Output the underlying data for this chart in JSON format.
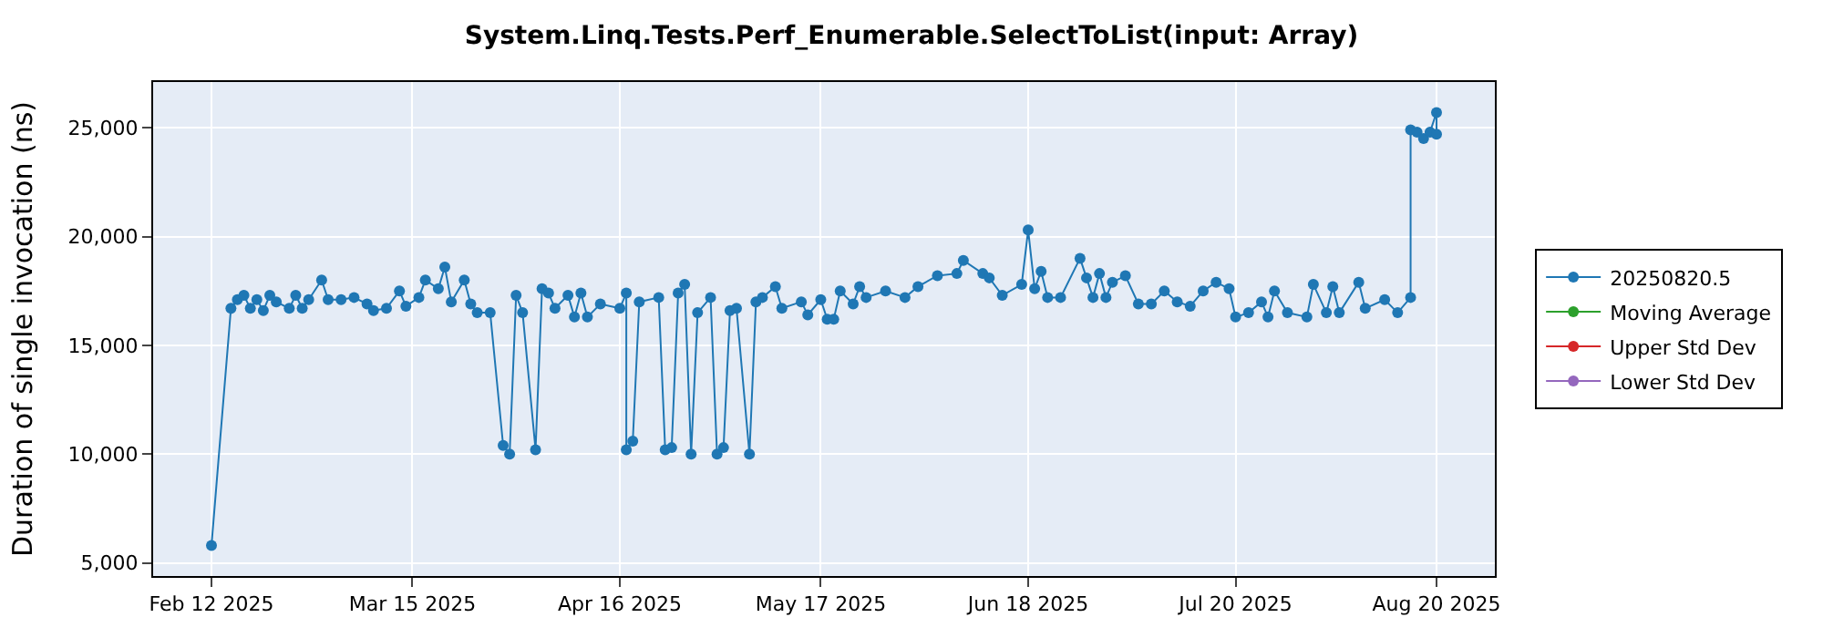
{
  "chart_data": {
    "type": "line",
    "title": "System.Linq.Tests.Perf_Enumerable.SelectToList(input: Array)",
    "ylabel": "Duration of single invocation (ns)",
    "x": [
      "2025-02-12",
      "2025-02-15",
      "2025-02-16",
      "2025-02-17",
      "2025-02-18",
      "2025-02-19",
      "2025-02-20",
      "2025-02-21",
      "2025-02-22",
      "2025-02-24",
      "2025-02-25",
      "2025-02-26",
      "2025-02-27",
      "2025-03-01",
      "2025-03-02",
      "2025-03-04",
      "2025-03-06",
      "2025-03-08",
      "2025-03-09",
      "2025-03-11",
      "2025-03-13",
      "2025-03-14",
      "2025-03-16",
      "2025-03-17",
      "2025-03-19",
      "2025-03-20",
      "2025-03-21",
      "2025-03-23",
      "2025-03-24",
      "2025-03-25",
      "2025-03-27",
      "2025-03-29",
      "2025-03-30",
      "2025-03-31",
      "2025-04-01",
      "2025-04-03",
      "2025-04-04",
      "2025-04-05",
      "2025-04-06",
      "2025-04-08",
      "2025-04-09",
      "2025-04-10",
      "2025-04-11",
      "2025-04-13",
      "2025-04-16",
      "2025-04-17",
      "2025-04-17",
      "2025-04-18",
      "2025-04-19",
      "2025-04-22",
      "2025-04-23",
      "2025-04-24",
      "2025-04-25",
      "2025-04-26",
      "2025-04-27",
      "2025-04-28",
      "2025-04-30",
      "2025-05-01",
      "2025-05-02",
      "2025-05-03",
      "2025-05-04",
      "2025-05-06",
      "2025-05-07",
      "2025-05-08",
      "2025-05-10",
      "2025-05-11",
      "2025-05-14",
      "2025-05-15",
      "2025-05-17",
      "2025-05-18",
      "2025-05-19",
      "2025-05-20",
      "2025-05-22",
      "2025-05-23",
      "2025-05-24",
      "2025-05-27",
      "2025-05-30",
      "2025-06-01",
      "2025-06-04",
      "2025-06-07",
      "2025-06-08",
      "2025-06-11",
      "2025-06-12",
      "2025-06-14",
      "2025-06-17",
      "2025-06-18",
      "2025-06-19",
      "2025-06-20",
      "2025-06-21",
      "2025-06-23",
      "2025-06-26",
      "2025-06-27",
      "2025-06-28",
      "2025-06-29",
      "2025-06-30",
      "2025-07-01",
      "2025-07-03",
      "2025-07-05",
      "2025-07-07",
      "2025-07-09",
      "2025-07-11",
      "2025-07-13",
      "2025-07-15",
      "2025-07-17",
      "2025-07-19",
      "2025-07-20",
      "2025-07-22",
      "2025-07-24",
      "2025-07-25",
      "2025-07-26",
      "2025-07-28",
      "2025-07-31",
      "2025-08-01",
      "2025-08-03",
      "2025-08-04",
      "2025-08-05",
      "2025-08-08",
      "2025-08-09",
      "2025-08-12",
      "2025-08-14",
      "2025-08-16",
      "2025-08-16",
      "2025-08-17",
      "2025-08-18",
      "2025-08-19",
      "2025-08-20",
      "2025-08-20"
    ],
    "series": [
      {
        "name": "20250820.5",
        "color": "#1f77b4",
        "marker": "circle",
        "values": [
          5800,
          16700,
          17100,
          17300,
          16700,
          17100,
          16600,
          17300,
          17000,
          16700,
          17300,
          16700,
          17100,
          18000,
          17100,
          17100,
          17200,
          16900,
          16600,
          16700,
          17500,
          16800,
          17200,
          18000,
          17600,
          18600,
          17000,
          18000,
          16900,
          16500,
          16500,
          10400,
          10000,
          17300,
          16500,
          10200,
          17600,
          17400,
          16700,
          17300,
          16300,
          17400,
          16300,
          16900,
          16700,
          17400,
          10200,
          10600,
          17000,
          17200,
          10200,
          10300,
          17400,
          17800,
          10000,
          16500,
          17200,
          10000,
          10300,
          16600,
          16700,
          10000,
          17000,
          17200,
          17700,
          16700,
          17000,
          16400,
          17100,
          16200,
          16200,
          17500,
          16900,
          17700,
          17200,
          17500,
          17200,
          17700,
          18200,
          18300,
          18900,
          18300,
          18100,
          17300,
          17800,
          20300,
          17600,
          18400,
          17200,
          17200,
          19000,
          18100,
          17200,
          18300,
          17200,
          17900,
          18200,
          16900,
          16900,
          17500,
          17000,
          16800,
          17500,
          17900,
          17600,
          16300,
          16500,
          17000,
          16300,
          17500,
          16500,
          16300,
          17800,
          16500,
          17700,
          16500,
          17900,
          16700,
          17100,
          16500,
          17200,
          24900,
          24800,
          24500,
          24800,
          25700,
          24700
        ]
      },
      {
        "name": "Moving Average",
        "color": "#2ca02c",
        "marker": "circle",
        "values": [
          null,
          null,
          null,
          null,
          null,
          null,
          null,
          null,
          null,
          null,
          null,
          null,
          null,
          null,
          null,
          null,
          null,
          null,
          null,
          null,
          null,
          null,
          null,
          null,
          null,
          null,
          null,
          null,
          null,
          null,
          null,
          null,
          null,
          null,
          null,
          null,
          null,
          null,
          null,
          null,
          null,
          null,
          null,
          null,
          null,
          null,
          null,
          null,
          null,
          null,
          null,
          null,
          null,
          null,
          null,
          null,
          null,
          null,
          null,
          null,
          null,
          null,
          null,
          null,
          null,
          null,
          null,
          null,
          null,
          null,
          null,
          null,
          null,
          null,
          null,
          null,
          null,
          null,
          null,
          null,
          null,
          null,
          null,
          null,
          null,
          null,
          null,
          null,
          null,
          null,
          null,
          null,
          null,
          null,
          null,
          null,
          null,
          null,
          null,
          null,
          null,
          null,
          null,
          null,
          null,
          null,
          null,
          null,
          null,
          null,
          null,
          null,
          null,
          null,
          null,
          null,
          null,
          null,
          null,
          null,
          null,
          null,
          null,
          null,
          null,
          null,
          null
        ]
      },
      {
        "name": "Upper Std Dev",
        "color": "#d62728",
        "marker": "circle",
        "values": [
          null,
          null,
          null,
          null,
          null,
          null,
          null,
          null,
          null,
          null,
          null,
          null,
          null,
          null,
          null,
          null,
          null,
          null,
          null,
          null,
          null,
          null,
          null,
          null,
          null,
          null,
          null,
          null,
          null,
          null,
          null,
          null,
          null,
          null,
          null,
          null,
          null,
          null,
          null,
          null,
          null,
          null,
          null,
          null,
          null,
          null,
          null,
          null,
          null,
          null,
          null,
          null,
          null,
          null,
          null,
          null,
          null,
          null,
          null,
          null,
          null,
          null,
          null,
          null,
          null,
          null,
          null,
          null,
          null,
          null,
          null,
          null,
          null,
          null,
          null,
          null,
          null,
          null,
          null,
          null,
          null,
          null,
          null,
          null,
          null,
          null,
          null,
          null,
          null,
          null,
          null,
          null,
          null,
          null,
          null,
          null,
          null,
          null,
          null,
          null,
          null,
          null,
          null,
          null,
          null,
          null,
          null,
          null,
          null,
          null,
          null,
          null,
          null,
          null,
          null,
          null,
          null,
          null,
          null,
          null,
          null,
          null,
          null,
          null,
          null,
          null,
          null
        ]
      },
      {
        "name": "Lower Std Dev",
        "color": "#9467bd",
        "marker": "circle",
        "values": [
          null,
          null,
          null,
          null,
          null,
          null,
          null,
          null,
          null,
          null,
          null,
          null,
          null,
          null,
          null,
          null,
          null,
          null,
          null,
          null,
          null,
          null,
          null,
          null,
          null,
          null,
          null,
          null,
          null,
          null,
          null,
          null,
          null,
          null,
          null,
          null,
          null,
          null,
          null,
          null,
          null,
          null,
          null,
          null,
          null,
          null,
          null,
          null,
          null,
          null,
          null,
          null,
          null,
          null,
          null,
          null,
          null,
          null,
          null,
          null,
          null,
          null,
          null,
          null,
          null,
          null,
          null,
          null,
          null,
          null,
          null,
          null,
          null,
          null,
          null,
          null,
          null,
          null,
          null,
          null,
          null,
          null,
          null,
          null,
          null,
          null,
          null,
          null,
          null,
          null,
          null,
          null,
          null,
          null,
          null,
          null,
          null,
          null,
          null,
          null,
          null,
          null,
          null,
          null,
          null,
          null,
          null,
          null,
          null,
          null,
          null,
          null,
          null,
          null,
          null,
          null,
          null,
          null,
          null,
          null,
          null,
          null,
          null,
          null,
          null,
          null,
          null
        ]
      }
    ],
    "xlim": [
      "2025-02-03",
      "2025-08-29"
    ],
    "xticks": [
      {
        "value": "2025-02-12",
        "label": "Feb 12 2025"
      },
      {
        "value": "2025-03-15",
        "label": "Mar 15 2025"
      },
      {
        "value": "2025-04-16",
        "label": "Apr 16 2025"
      },
      {
        "value": "2025-05-17",
        "label": "May 17 2025"
      },
      {
        "value": "2025-06-18",
        "label": "Jun 18 2025"
      },
      {
        "value": "2025-07-20",
        "label": "Jul 20 2025"
      },
      {
        "value": "2025-08-20",
        "label": "Aug 20 2025"
      }
    ],
    "ylim": [
      4400,
      27100
    ],
    "yticks": [
      {
        "value": 5000,
        "label": "5,000"
      },
      {
        "value": 10000,
        "label": "10,000"
      },
      {
        "value": 15000,
        "label": "15,000"
      },
      {
        "value": 20000,
        "label": "20,000"
      },
      {
        "value": 25000,
        "label": "25,000"
      }
    ],
    "grid": true,
    "legend": "right",
    "line_style": "solid"
  }
}
